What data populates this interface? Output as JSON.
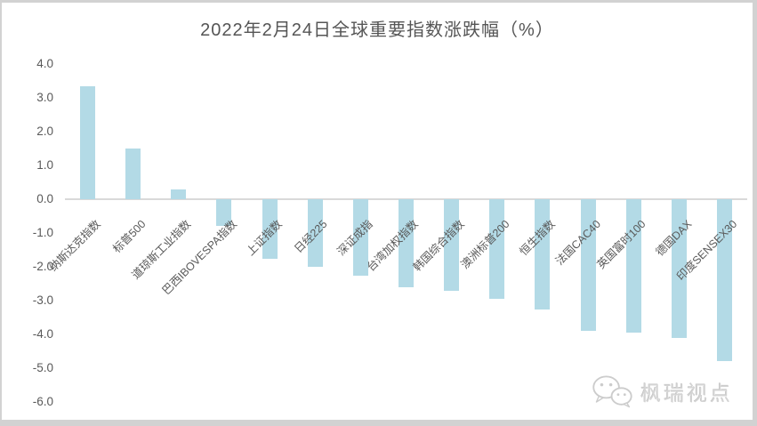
{
  "window": {
    "background_color": "#ffffff",
    "frame_color": "#d2d2d2"
  },
  "chart_data": {
    "type": "bar",
    "title": "2022年2月24日全球重要指数涨跌幅（%）",
    "categories": [
      "纳斯达克指数",
      "标普500",
      "道琼斯工业指数",
      "巴西IBOVESPA指数",
      "上证指数",
      "日经225",
      "深证成指",
      "台湾加权指数",
      "韩国综合指数",
      "澳洲标普200",
      "恒生指数",
      "法国CAC40",
      "英国富时100",
      "德国DAX",
      "印度SENSEX30"
    ],
    "values": [
      3.35,
      1.5,
      0.3,
      -0.8,
      -1.75,
      -2.0,
      -2.25,
      -2.6,
      -2.7,
      -2.95,
      -3.25,
      -3.9,
      -3.95,
      -4.1,
      -4.8
    ],
    "xlabel": "",
    "ylabel": "",
    "ylim": [
      -6.0,
      4.0
    ],
    "y_ticks": [
      "4.0",
      "3.0",
      "2.0",
      "1.0",
      "0.0",
      "-1.0",
      "-2.0",
      "-3.0",
      "-4.0",
      "-5.0",
      "-6.0"
    ],
    "y_tick_values": [
      4.0,
      3.0,
      2.0,
      1.0,
      0.0,
      -1.0,
      -2.0,
      -3.0,
      -4.0,
      -5.0,
      -6.0
    ],
    "grid": "zero-line-only",
    "legend": "none",
    "bar_color": "#b3dae6",
    "axis_text_color": "#595959",
    "title_color": "#555555",
    "zero_line_color": "#d9d9d9",
    "category_label_rotation_deg": 45
  },
  "watermark": {
    "icon": "wechat-icon",
    "text": "枫瑞视点",
    "color": "#d4d4d4"
  }
}
